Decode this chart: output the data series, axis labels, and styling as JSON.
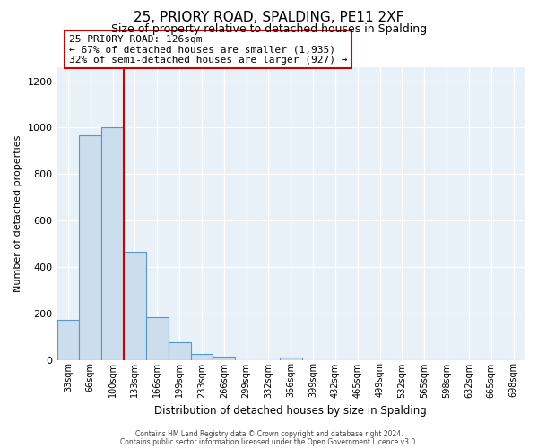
{
  "title1": "25, PRIORY ROAD, SPALDING, PE11 2XF",
  "title2": "Size of property relative to detached houses in Spalding",
  "xlabel": "Distribution of detached houses by size in Spalding",
  "ylabel": "Number of detached properties",
  "bar_labels": [
    "33sqm",
    "66sqm",
    "100sqm",
    "133sqm",
    "166sqm",
    "199sqm",
    "233sqm",
    "266sqm",
    "299sqm",
    "332sqm",
    "366sqm",
    "399sqm",
    "432sqm",
    "465sqm",
    "499sqm",
    "532sqm",
    "565sqm",
    "598sqm",
    "632sqm",
    "665sqm",
    "698sqm"
  ],
  "bar_heights": [
    170,
    965,
    1000,
    465,
    185,
    75,
    25,
    15,
    0,
    0,
    10,
    0,
    0,
    0,
    0,
    0,
    0,
    0,
    0,
    0,
    0
  ],
  "bar_color": "#ccdded",
  "bar_edgecolor": "#5599cc",
  "marker_color": "#cc0000",
  "annotation_line1": "25 PRIORY ROAD: 126sqm",
  "annotation_line2": "← 67% of detached houses are smaller (1,935)",
  "annotation_line3": "32% of semi-detached houses are larger (927) →",
  "ylim": [
    0,
    1260
  ],
  "yticks": [
    0,
    200,
    400,
    600,
    800,
    1000,
    1200
  ],
  "footer1": "Contains HM Land Registry data © Crown copyright and database right 2024.",
  "footer2": "Contains public sector information licensed under the Open Government Licence v3.0.",
  "bg_color": "#ffffff",
  "plot_bg_color": "#e8f0f8"
}
